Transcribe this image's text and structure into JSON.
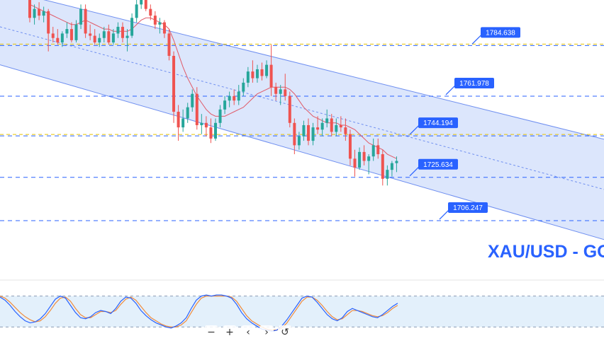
{
  "chart_data": [
    {
      "type": "candlestick",
      "symbol_text": "XAU/USD - GO",
      "levels": [
        {
          "value": 1784.638,
          "label": "1784.638",
          "line_color": "#2962ff",
          "dashed": true,
          "yellow": true
        },
        {
          "value": 1761.978,
          "label": "1761.978",
          "line_color": "#2962ff",
          "dashed": true
        },
        {
          "value": 1744.194,
          "label": "1744.194",
          "line_color": "#2962ff",
          "dashed": true,
          "yellow": true
        },
        {
          "value": 1725.634,
          "label": "1725.634",
          "line_color": "#2962ff",
          "dashed": true
        },
        {
          "value": 1706.247,
          "label": "1706.247",
          "line_color": "#2962ff",
          "dashed": true
        }
      ],
      "price_range": [
        1680,
        1805
      ],
      "channel": {
        "fill": "#d6e2fb",
        "stroke": "#6f8ff0",
        "upper": [
          [
            0,
            1810.0
          ],
          [
            125,
            1742.0
          ]
        ],
        "lower": [
          [
            0,
            1776.0
          ],
          [
            125,
            1697.0
          ]
        ],
        "mid": [
          [
            0,
            1793.0
          ],
          [
            125,
            1719.5
          ]
        ]
      },
      "candles": [
        {
          "o": 1805,
          "h": 1807,
          "l": 1795,
          "c": 1797
        },
        {
          "o": 1797,
          "h": 1803,
          "l": 1794,
          "c": 1801
        },
        {
          "o": 1801,
          "h": 1804,
          "l": 1796,
          "c": 1798
        },
        {
          "o": 1798,
          "h": 1802,
          "l": 1795,
          "c": 1800
        },
        {
          "o": 1800,
          "h": 1801,
          "l": 1782,
          "c": 1790
        },
        {
          "o": 1790,
          "h": 1793,
          "l": 1786,
          "c": 1788
        },
        {
          "o": 1788,
          "h": 1792,
          "l": 1785,
          "c": 1786
        },
        {
          "o": 1786,
          "h": 1791,
          "l": 1784,
          "c": 1790
        },
        {
          "o": 1790,
          "h": 1795,
          "l": 1788,
          "c": 1792
        },
        {
          "o": 1792,
          "h": 1795,
          "l": 1786,
          "c": 1787
        },
        {
          "o": 1787,
          "h": 1796,
          "l": 1786,
          "c": 1794
        },
        {
          "o": 1794,
          "h": 1803,
          "l": 1792,
          "c": 1801
        },
        {
          "o": 1801,
          "h": 1803,
          "l": 1788,
          "c": 1790
        },
        {
          "o": 1790,
          "h": 1794,
          "l": 1787,
          "c": 1789
        },
        {
          "o": 1789,
          "h": 1792,
          "l": 1785,
          "c": 1786
        },
        {
          "o": 1786,
          "h": 1790,
          "l": 1784,
          "c": 1788
        },
        {
          "o": 1788,
          "h": 1793,
          "l": 1786,
          "c": 1791
        },
        {
          "o": 1791,
          "h": 1794,
          "l": 1785,
          "c": 1786
        },
        {
          "o": 1786,
          "h": 1792,
          "l": 1785,
          "c": 1790
        },
        {
          "o": 1790,
          "h": 1795,
          "l": 1788,
          "c": 1793
        },
        {
          "o": 1793,
          "h": 1795,
          "l": 1786,
          "c": 1788
        },
        {
          "o": 1788,
          "h": 1792,
          "l": 1782,
          "c": 1789
        },
        {
          "o": 1789,
          "h": 1799,
          "l": 1788,
          "c": 1797
        },
        {
          "o": 1797,
          "h": 1805,
          "l": 1795,
          "c": 1803
        },
        {
          "o": 1803,
          "h": 1808,
          "l": 1801,
          "c": 1806
        },
        {
          "o": 1806,
          "h": 1808,
          "l": 1800,
          "c": 1801
        },
        {
          "o": 1801,
          "h": 1803,
          "l": 1796,
          "c": 1798
        },
        {
          "o": 1798,
          "h": 1800,
          "l": 1792,
          "c": 1794
        },
        {
          "o": 1794,
          "h": 1797,
          "l": 1790,
          "c": 1795
        },
        {
          "o": 1795,
          "h": 1796,
          "l": 1788,
          "c": 1790
        },
        {
          "o": 1790,
          "h": 1792,
          "l": 1778,
          "c": 1780
        },
        {
          "o": 1780,
          "h": 1782,
          "l": 1750,
          "c": 1755
        },
        {
          "o": 1755,
          "h": 1758,
          "l": 1742,
          "c": 1748
        },
        {
          "o": 1748,
          "h": 1756,
          "l": 1746,
          "c": 1752
        },
        {
          "o": 1752,
          "h": 1759,
          "l": 1750,
          "c": 1757
        },
        {
          "o": 1757,
          "h": 1765,
          "l": 1755,
          "c": 1763
        },
        {
          "o": 1763,
          "h": 1766,
          "l": 1747,
          "c": 1749
        },
        {
          "o": 1749,
          "h": 1754,
          "l": 1745,
          "c": 1750
        },
        {
          "o": 1750,
          "h": 1753,
          "l": 1744,
          "c": 1748
        },
        {
          "o": 1748,
          "h": 1752,
          "l": 1741,
          "c": 1743
        },
        {
          "o": 1743,
          "h": 1752,
          "l": 1742,
          "c": 1750
        },
        {
          "o": 1750,
          "h": 1758,
          "l": 1748,
          "c": 1756
        },
        {
          "o": 1756,
          "h": 1762,
          "l": 1754,
          "c": 1760
        },
        {
          "o": 1760,
          "h": 1764,
          "l": 1757,
          "c": 1762
        },
        {
          "o": 1762,
          "h": 1765,
          "l": 1758,
          "c": 1760
        },
        {
          "o": 1760,
          "h": 1767,
          "l": 1758,
          "c": 1764
        },
        {
          "o": 1764,
          "h": 1770,
          "l": 1762,
          "c": 1768
        },
        {
          "o": 1768,
          "h": 1775,
          "l": 1766,
          "c": 1773
        },
        {
          "o": 1773,
          "h": 1778,
          "l": 1768,
          "c": 1770
        },
        {
          "o": 1770,
          "h": 1776,
          "l": 1768,
          "c": 1774
        },
        {
          "o": 1774,
          "h": 1777,
          "l": 1769,
          "c": 1771
        },
        {
          "o": 1771,
          "h": 1778,
          "l": 1770,
          "c": 1776
        },
        {
          "o": 1776,
          "h": 1785,
          "l": 1762,
          "c": 1766
        },
        {
          "o": 1766,
          "h": 1768,
          "l": 1760,
          "c": 1763
        },
        {
          "o": 1763,
          "h": 1767,
          "l": 1758,
          "c": 1765
        },
        {
          "o": 1765,
          "h": 1772,
          "l": 1760,
          "c": 1762
        },
        {
          "o": 1762,
          "h": 1764,
          "l": 1748,
          "c": 1750
        },
        {
          "o": 1750,
          "h": 1752,
          "l": 1736,
          "c": 1740
        },
        {
          "o": 1740,
          "h": 1746,
          "l": 1738,
          "c": 1744
        },
        {
          "o": 1744,
          "h": 1751,
          "l": 1742,
          "c": 1749
        },
        {
          "o": 1749,
          "h": 1752,
          "l": 1740,
          "c": 1742
        },
        {
          "o": 1742,
          "h": 1750,
          "l": 1740,
          "c": 1748
        },
        {
          "o": 1748,
          "h": 1753,
          "l": 1745,
          "c": 1747
        },
        {
          "o": 1747,
          "h": 1752,
          "l": 1744,
          "c": 1750
        },
        {
          "o": 1750,
          "h": 1756,
          "l": 1748,
          "c": 1752
        },
        {
          "o": 1752,
          "h": 1754,
          "l": 1744,
          "c": 1746
        },
        {
          "o": 1746,
          "h": 1752,
          "l": 1744,
          "c": 1749
        },
        {
          "o": 1749,
          "h": 1753,
          "l": 1746,
          "c": 1748
        },
        {
          "o": 1748,
          "h": 1752,
          "l": 1742,
          "c": 1745
        },
        {
          "o": 1745,
          "h": 1747,
          "l": 1731,
          "c": 1734
        },
        {
          "o": 1734,
          "h": 1738,
          "l": 1726,
          "c": 1730
        },
        {
          "o": 1730,
          "h": 1739,
          "l": 1729,
          "c": 1737
        },
        {
          "o": 1737,
          "h": 1740,
          "l": 1731,
          "c": 1733
        },
        {
          "o": 1733,
          "h": 1736,
          "l": 1727,
          "c": 1735
        },
        {
          "o": 1735,
          "h": 1743,
          "l": 1733,
          "c": 1740
        },
        {
          "o": 1740,
          "h": 1743,
          "l": 1734,
          "c": 1736
        },
        {
          "o": 1736,
          "h": 1738,
          "l": 1722,
          "c": 1725
        },
        {
          "o": 1725,
          "h": 1731,
          "l": 1722,
          "c": 1729
        },
        {
          "o": 1729,
          "h": 1733,
          "l": 1726,
          "c": 1732
        },
        {
          "o": 1732,
          "h": 1735,
          "l": 1728,
          "c": 1733
        }
      ],
      "ma": [
        1803,
        1802,
        1801,
        1800,
        1799,
        1798,
        1797,
        1796,
        1795,
        1794,
        1794,
        1795,
        1796,
        1795,
        1794,
        1793,
        1792,
        1792,
        1791,
        1791,
        1791,
        1791,
        1792,
        1794,
        1796,
        1797,
        1797,
        1796,
        1795,
        1794,
        1792,
        1787,
        1781,
        1775,
        1770,
        1766,
        1762,
        1759,
        1756,
        1754,
        1753,
        1753,
        1753,
        1754,
        1755,
        1756,
        1757,
        1759,
        1761,
        1763,
        1764,
        1765,
        1766,
        1766,
        1766,
        1766,
        1765,
        1763,
        1760,
        1757,
        1755,
        1753,
        1752,
        1751,
        1750,
        1750,
        1750,
        1749,
        1749,
        1748,
        1747,
        1745,
        1743,
        1741,
        1740,
        1739,
        1738,
        1736,
        1735,
        1734
      ],
      "stoch_k": [
        78,
        72,
        62,
        50,
        40,
        32,
        28,
        30,
        36,
        46,
        60,
        74,
        80,
        76,
        62,
        48,
        38,
        36,
        40,
        48,
        52,
        50,
        46,
        56,
        70,
        78,
        76,
        66,
        52,
        42,
        34,
        28,
        24,
        20,
        18,
        22,
        28,
        38,
        56,
        72,
        80,
        82,
        80,
        82,
        82,
        80,
        76,
        64,
        48,
        36,
        28,
        22,
        16,
        14,
        12,
        14,
        22,
        34,
        48,
        62,
        76,
        80,
        78,
        68,
        56,
        44,
        36,
        32,
        38,
        50,
        56,
        52,
        48,
        44,
        40,
        38,
        44,
        52,
        60,
        66
      ],
      "stoch_d": [
        80,
        76,
        68,
        58,
        48,
        40,
        34,
        30,
        32,
        40,
        52,
        66,
        76,
        78,
        70,
        56,
        44,
        38,
        38,
        44,
        50,
        50,
        48,
        52,
        64,
        74,
        78,
        72,
        60,
        48,
        38,
        32,
        26,
        22,
        20,
        20,
        24,
        32,
        48,
        64,
        76,
        80,
        80,
        80,
        80,
        80,
        78,
        70,
        56,
        42,
        32,
        26,
        20,
        16,
        14,
        14,
        18,
        28,
        42,
        56,
        70,
        78,
        78,
        72,
        62,
        50,
        40,
        34,
        36,
        44,
        52,
        52,
        50,
        46,
        42,
        40,
        42,
        48,
        56,
        62
      ],
      "stoch_band": [
        20,
        80
      ]
    }
  ],
  "toolbar": {
    "zoom_out": "−",
    "zoom_in": "+",
    "scroll_left": "‹",
    "scroll_right": "›",
    "reset": "↺"
  }
}
